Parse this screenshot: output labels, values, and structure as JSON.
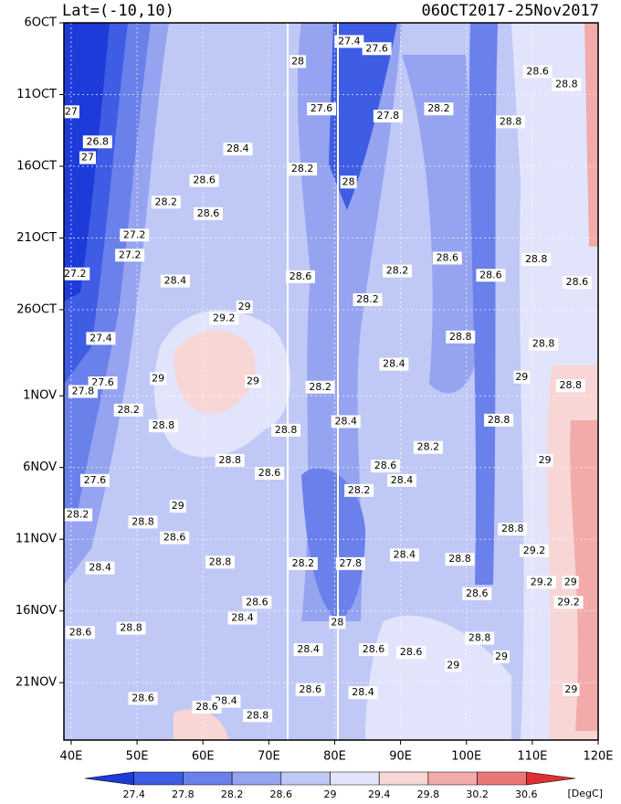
{
  "chart_data": {
    "type": "hovmoller",
    "title_left": "Lat=(-10,10)",
    "title_right": "06OCT2017-25Nov2017",
    "xlim": [
      38.9,
      120
    ],
    "ylim": [
      0,
      50
    ],
    "xticks": [
      {
        "value": 40,
        "label": "40E"
      },
      {
        "value": 50,
        "label": "50E"
      },
      {
        "value": 60,
        "label": "60E"
      },
      {
        "value": 70,
        "label": "70E"
      },
      {
        "value": 80,
        "label": "80E"
      },
      {
        "value": 90,
        "label": "90E"
      },
      {
        "value": 100,
        "label": "100E"
      },
      {
        "value": 110,
        "label": "110E"
      },
      {
        "value": 120,
        "label": "120E"
      }
    ],
    "yticks": [
      {
        "value": 0,
        "label": "6OCT"
      },
      {
        "value": 5,
        "label": "11OCT"
      },
      {
        "value": 10,
        "label": "16OCT"
      },
      {
        "value": 15,
        "label": "21OCT"
      },
      {
        "value": 20,
        "label": "26OCT"
      },
      {
        "value": 26,
        "label": "1NOV"
      },
      {
        "value": 31,
        "label": "6NOV"
      },
      {
        "value": 36,
        "label": "11NOV"
      },
      {
        "value": 41,
        "label": "16NOV"
      },
      {
        "value": 46,
        "label": "21NOV"
      }
    ],
    "grid": true,
    "levels": [
      27.4,
      27.8,
      28.2,
      28.6,
      29,
      29.4,
      29.8,
      30.2,
      30.6
    ],
    "colors": [
      "#1d3bd8",
      "#3f5ce4",
      "#6a80ea",
      "#95a3f0",
      "#c0c8f6",
      "#e2e4fb",
      "#f8d6d6",
      "#f2aaaa",
      "#ea7777",
      "#de3030"
    ],
    "unit": "[DegC]",
    "contour_labels": [
      {
        "lon": 82.2,
        "day": 1.3,
        "value": 27.4
      },
      {
        "lon": 86.4,
        "day": 1.8,
        "value": 27.6
      },
      {
        "lon": 74.4,
        "day": 2.7,
        "value": 28
      },
      {
        "lon": 40.0,
        "day": 6.2,
        "value": 27
      },
      {
        "lon": 44.0,
        "day": 8.3,
        "value": 26.8
      },
      {
        "lon": 42.5,
        "day": 9.4,
        "value": 27
      },
      {
        "lon": 65.3,
        "day": 8.8,
        "value": 28.4
      },
      {
        "lon": 78.0,
        "day": 6.0,
        "value": 27.6
      },
      {
        "lon": 88.1,
        "day": 6.5,
        "value": 27.8
      },
      {
        "lon": 95.8,
        "day": 6.0,
        "value": 28.2
      },
      {
        "lon": 106.7,
        "day": 6.9,
        "value": 28.8
      },
      {
        "lon": 110.8,
        "day": 3.4,
        "value": 28.6
      },
      {
        "lon": 115.2,
        "day": 4.3,
        "value": 28.8
      },
      {
        "lon": 75.1,
        "day": 10.2,
        "value": 28.2
      },
      {
        "lon": 82.1,
        "day": 11.1,
        "value": 28
      },
      {
        "lon": 60.2,
        "day": 11.0,
        "value": 28.6
      },
      {
        "lon": 54.4,
        "day": 12.5,
        "value": 28.2
      },
      {
        "lon": 60.8,
        "day": 13.3,
        "value": 28.6
      },
      {
        "lon": 49.6,
        "day": 14.8,
        "value": 27.2
      },
      {
        "lon": 48.9,
        "day": 16.2,
        "value": 27.2
      },
      {
        "lon": 40.6,
        "day": 17.5,
        "value": 27.2
      },
      {
        "lon": 55.8,
        "day": 18.0,
        "value": 28.4
      },
      {
        "lon": 74.8,
        "day": 17.7,
        "value": 28.6
      },
      {
        "lon": 89.5,
        "day": 17.3,
        "value": 28.2
      },
      {
        "lon": 85.0,
        "day": 19.3,
        "value": 28.2
      },
      {
        "lon": 97.1,
        "day": 16.4,
        "value": 28.6
      },
      {
        "lon": 103.7,
        "day": 17.6,
        "value": 28.6
      },
      {
        "lon": 110.6,
        "day": 16.5,
        "value": 28.8
      },
      {
        "lon": 116.8,
        "day": 18.1,
        "value": 28.6
      },
      {
        "lon": 63.2,
        "day": 20.6,
        "value": 29.2
      },
      {
        "lon": 66.3,
        "day": 19.8,
        "value": 29
      },
      {
        "lon": 44.5,
        "day": 22.0,
        "value": 27.4
      },
      {
        "lon": 99.1,
        "day": 21.9,
        "value": 28.8
      },
      {
        "lon": 111.7,
        "day": 22.4,
        "value": 28.8
      },
      {
        "lon": 89.0,
        "day": 23.8,
        "value": 28.4
      },
      {
        "lon": 53.2,
        "day": 24.8,
        "value": 29
      },
      {
        "lon": 44.8,
        "day": 25.1,
        "value": 27.6
      },
      {
        "lon": 41.8,
        "day": 25.7,
        "value": 27.8
      },
      {
        "lon": 48.7,
        "day": 27.0,
        "value": 28.2
      },
      {
        "lon": 54.0,
        "day": 28.1,
        "value": 28.8
      },
      {
        "lon": 67.6,
        "day": 25.0,
        "value": 29
      },
      {
        "lon": 77.8,
        "day": 25.4,
        "value": 28.2
      },
      {
        "lon": 81.7,
        "day": 27.8,
        "value": 28.4
      },
      {
        "lon": 72.6,
        "day": 28.4,
        "value": 28.8
      },
      {
        "lon": 104.9,
        "day": 27.7,
        "value": 28.8
      },
      {
        "lon": 94.2,
        "day": 29.6,
        "value": 28.2
      },
      {
        "lon": 64.1,
        "day": 30.5,
        "value": 28.8
      },
      {
        "lon": 70.1,
        "day": 31.4,
        "value": 28.6
      },
      {
        "lon": 87.7,
        "day": 30.9,
        "value": 28.6
      },
      {
        "lon": 90.2,
        "day": 31.9,
        "value": 28.4
      },
      {
        "lon": 43.6,
        "day": 31.9,
        "value": 27.6
      },
      {
        "lon": 83.7,
        "day": 32.6,
        "value": 28.2
      },
      {
        "lon": 56.2,
        "day": 33.7,
        "value": 29
      },
      {
        "lon": 41.0,
        "day": 34.3,
        "value": 28.2
      },
      {
        "lon": 50.9,
        "day": 34.8,
        "value": 28.8
      },
      {
        "lon": 55.7,
        "day": 35.9,
        "value": 28.6
      },
      {
        "lon": 111.9,
        "day": 30.5,
        "value": 29
      },
      {
        "lon": 107.0,
        "day": 35.3,
        "value": 28.8
      },
      {
        "lon": 110.3,
        "day": 36.8,
        "value": 29.2
      },
      {
        "lon": 90.6,
        "day": 37.1,
        "value": 28.4
      },
      {
        "lon": 99.0,
        "day": 37.4,
        "value": 28.8
      },
      {
        "lon": 75.2,
        "day": 37.7,
        "value": 28.2
      },
      {
        "lon": 82.4,
        "day": 37.7,
        "value": 27.8
      },
      {
        "lon": 62.6,
        "day": 37.6,
        "value": 28.8
      },
      {
        "lon": 44.4,
        "day": 38.0,
        "value": 28.4
      },
      {
        "lon": 111.4,
        "day": 39.0,
        "value": 29.2
      },
      {
        "lon": 115.8,
        "day": 39.0,
        "value": 29
      },
      {
        "lon": 115.5,
        "day": 40.4,
        "value": 29.2
      },
      {
        "lon": 101.6,
        "day": 39.8,
        "value": 28.6
      },
      {
        "lon": 68.2,
        "day": 40.4,
        "value": 28.6
      },
      {
        "lon": 66.0,
        "day": 41.5,
        "value": 28.4
      },
      {
        "lon": 41.4,
        "day": 42.5,
        "value": 28.6
      },
      {
        "lon": 49.1,
        "day": 42.2,
        "value": 28.8
      },
      {
        "lon": 80.4,
        "day": 41.8,
        "value": 28
      },
      {
        "lon": 102.0,
        "day": 42.9,
        "value": 28.8
      },
      {
        "lon": 76.0,
        "day": 43.7,
        "value": 28.4
      },
      {
        "lon": 85.9,
        "day": 43.7,
        "value": 28.6
      },
      {
        "lon": 91.6,
        "day": 43.9,
        "value": 28.6
      },
      {
        "lon": 105.3,
        "day": 44.2,
        "value": 29
      },
      {
        "lon": 98.0,
        "day": 44.8,
        "value": 29
      },
      {
        "lon": 76.3,
        "day": 46.5,
        "value": 28.6
      },
      {
        "lon": 84.3,
        "day": 46.7,
        "value": 28.4
      },
      {
        "lon": 50.9,
        "day": 47.1,
        "value": 28.6
      },
      {
        "lon": 63.5,
        "day": 47.3,
        "value": 28.4
      },
      {
        "lon": 60.6,
        "day": 47.7,
        "value": 28.6
      },
      {
        "lon": 68.3,
        "day": 48.3,
        "value": 28.8
      },
      {
        "lon": 115.9,
        "day": 46.5,
        "value": 29
      },
      {
        "lon": 115.8,
        "day": 25.3,
        "value": 28.8
      },
      {
        "lon": 108.4,
        "day": 24.7,
        "value": 29
      }
    ]
  }
}
